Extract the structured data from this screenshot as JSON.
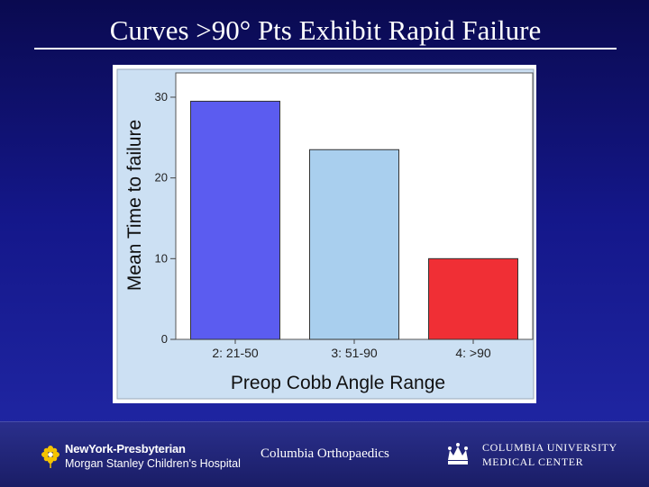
{
  "slide": {
    "title": "Curves >90° Pts Exhibit Rapid Failure"
  },
  "chart_data": {
    "type": "bar",
    "categories": [
      "2: 21-50",
      "3: 51-90",
      "4: >90"
    ],
    "values": [
      29.5,
      23.5,
      10
    ],
    "colors": [
      "#5b5cf0",
      "#a9cfee",
      "#f02f35"
    ],
    "xlabel": "Preop Cobb Angle Range",
    "ylabel": "Mean Time to failure",
    "ylim": [
      0,
      31
    ],
    "yticks": [
      0,
      10,
      20,
      30
    ],
    "plot_background": "#cce0f3",
    "panel_background": "#ffffff"
  },
  "footer": {
    "nyp_name": "NewYork-Presbyterian",
    "nyp_sub": "Morgan Stanley Children's Hospital",
    "ortho": "Columbia Orthopaedics",
    "cumc_line1": "Columbia University",
    "cumc_line2": "Medical Center"
  }
}
